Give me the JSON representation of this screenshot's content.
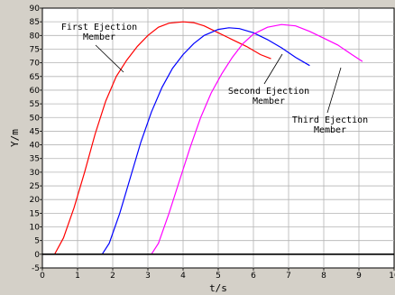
{
  "chart_data": {
    "type": "line",
    "xlabel": "t/s",
    "ylabel": "Y/m",
    "xlim": [
      0,
      10
    ],
    "ylim": [
      -5,
      90
    ],
    "x_ticks": [
      0,
      1,
      2,
      3,
      4,
      5,
      6,
      7,
      8,
      9,
      10
    ],
    "y_ticks": [
      -5,
      0,
      5,
      10,
      15,
      20,
      25,
      30,
      35,
      40,
      45,
      50,
      55,
      60,
      65,
      70,
      75,
      80,
      85,
      90
    ],
    "grid": true,
    "series": [
      {
        "name": "First Ejection Member",
        "color": "#ff0000",
        "points": [
          [
            0,
            0
          ],
          [
            0.35,
            0
          ],
          [
            0.6,
            6
          ],
          [
            0.9,
            17
          ],
          [
            1.2,
            30
          ],
          [
            1.5,
            44
          ],
          [
            1.8,
            56
          ],
          [
            2.1,
            65
          ],
          [
            2.4,
            71
          ],
          [
            2.7,
            76
          ],
          [
            3.0,
            80
          ],
          [
            3.3,
            83
          ],
          [
            3.6,
            84.5
          ],
          [
            4.0,
            85
          ],
          [
            4.3,
            84.7
          ],
          [
            4.6,
            83.5
          ],
          [
            5.0,
            81
          ],
          [
            5.4,
            78.5
          ],
          [
            5.8,
            76
          ],
          [
            6.2,
            73
          ],
          [
            6.5,
            71.5
          ]
        ]
      },
      {
        "name": "Second Ejection Member",
        "color": "#0000ff",
        "points": [
          [
            1.7,
            0
          ],
          [
            1.9,
            4
          ],
          [
            2.2,
            15
          ],
          [
            2.5,
            28
          ],
          [
            2.8,
            41
          ],
          [
            3.1,
            52
          ],
          [
            3.4,
            61
          ],
          [
            3.7,
            68
          ],
          [
            4.0,
            73
          ],
          [
            4.3,
            77
          ],
          [
            4.6,
            80
          ],
          [
            5.0,
            82.2
          ],
          [
            5.3,
            82.8
          ],
          [
            5.6,
            82.5
          ],
          [
            6.0,
            81
          ],
          [
            6.4,
            78.5
          ],
          [
            6.8,
            75.5
          ],
          [
            7.2,
            72
          ],
          [
            7.6,
            69
          ]
        ]
      },
      {
        "name": "Third Ejection Member",
        "color": "#ff00ff",
        "points": [
          [
            3.1,
            0
          ],
          [
            3.3,
            4
          ],
          [
            3.6,
            15
          ],
          [
            3.9,
            27
          ],
          [
            4.2,
            39
          ],
          [
            4.5,
            50
          ],
          [
            4.8,
            59
          ],
          [
            5.1,
            66
          ],
          [
            5.4,
            72
          ],
          [
            5.7,
            77
          ],
          [
            6.0,
            80.5
          ],
          [
            6.4,
            83
          ],
          [
            6.8,
            84
          ],
          [
            7.2,
            83.5
          ],
          [
            7.6,
            81.5
          ],
          [
            8.0,
            79
          ],
          [
            8.4,
            76.5
          ],
          [
            8.8,
            73
          ],
          [
            9.1,
            70.5
          ]
        ]
      },
      {
        "name": "",
        "color": "#000000",
        "points": [
          [
            0,
            0
          ],
          [
            10,
            0
          ]
        ]
      }
    ],
    "annotations": [
      {
        "lines": [
          "First Ejection",
          "Member"
        ]
      },
      {
        "lines": [
          "Second Ejection",
          "Member"
        ]
      },
      {
        "lines": [
          "Third Ejection",
          "Member"
        ]
      }
    ]
  }
}
